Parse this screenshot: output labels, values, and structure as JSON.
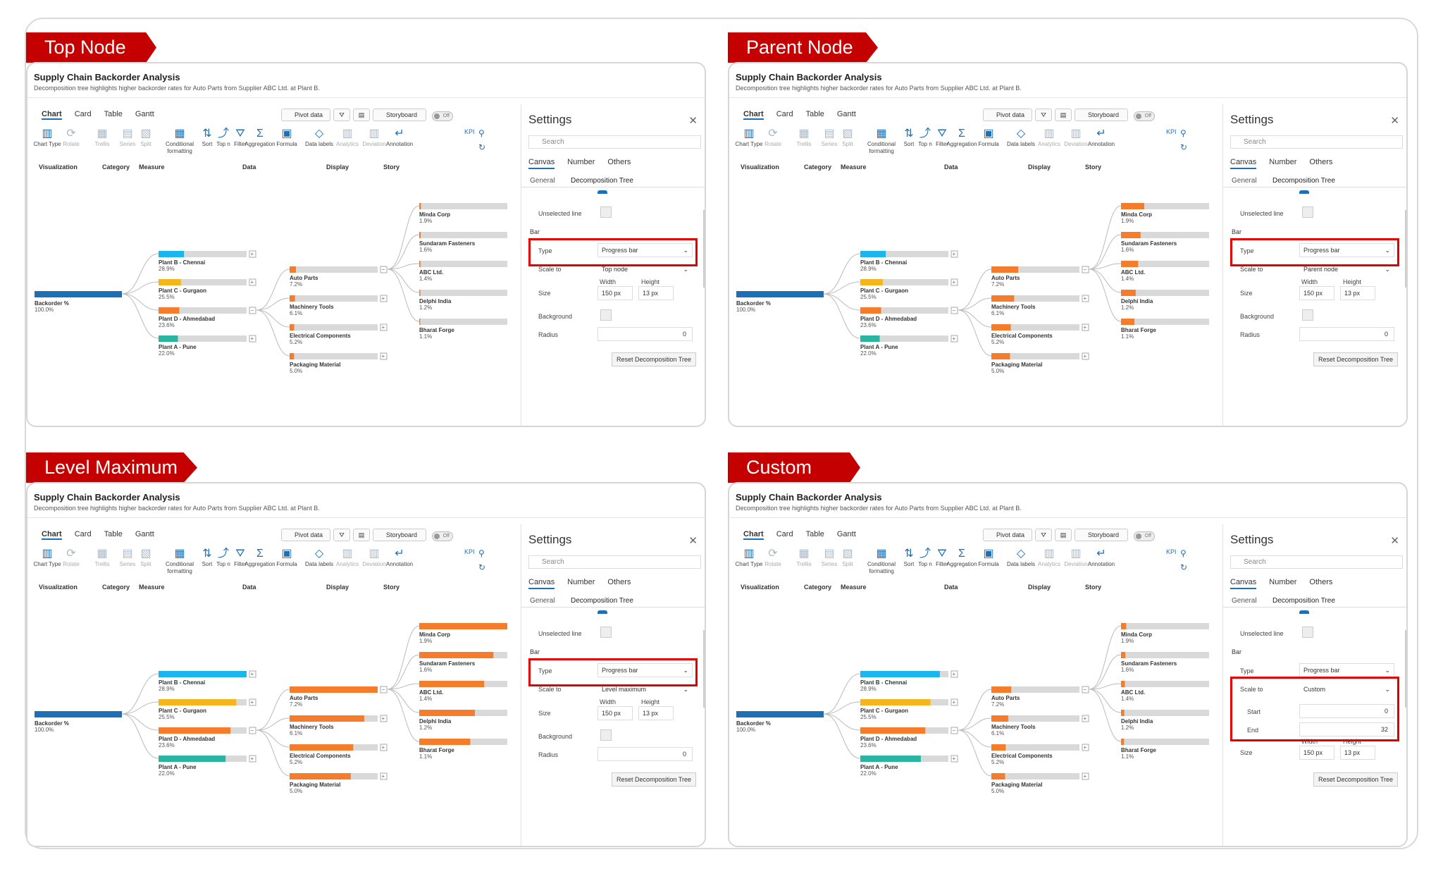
{
  "colors": {
    "accent": "#1f6fb5",
    "tag_red": "#c40000",
    "highlight": "#e00000",
    "bar_root": "#1f6fb5",
    "bar_chennai": "#1ab6f0",
    "bar_gurgaon": "#f5b51b",
    "bar_ahmedabad": "#f47c2a",
    "bar_pune": "#2ab5a3",
    "bar_orange": "#f47c2a",
    "bar_track": "#d9d9d9"
  },
  "common": {
    "title": "Supply Chain Backorder Analysis",
    "subtitle": "Decomposition tree highlights higher backorder rates for Auto Parts from Supplier ABC Ltd. at Plant B.",
    "tabs": [
      "Chart",
      "Card",
      "Table",
      "Gantt"
    ],
    "pivot_label": "Pivot data",
    "storyboard_label": "Storyboard",
    "toggle_label": "Off",
    "tools": [
      {
        "label": "Chart Type",
        "icon": "chart-type-icon",
        "glyph": "▥",
        "dim": false
      },
      {
        "label": "Rotate",
        "icon": "rotate-icon",
        "glyph": "⟳",
        "dim": true
      },
      {
        "label": "Trellis",
        "icon": "trellis-icon",
        "glyph": "▦",
        "dim": true
      },
      {
        "label": "Series",
        "icon": "series-icon",
        "glyph": "▤",
        "dim": true
      },
      {
        "label": "Split",
        "icon": "split-icon",
        "glyph": "▧",
        "dim": true
      },
      {
        "label": "Conditional formatting",
        "icon": "conditional-formatting-icon",
        "glyph": "▦",
        "dim": false
      },
      {
        "label": "Sort",
        "icon": "sort-icon",
        "glyph": "⇅",
        "dim": false
      },
      {
        "label": "Top n",
        "icon": "top-n-icon",
        "glyph": "⤴",
        "dim": false
      },
      {
        "label": "Filter",
        "icon": "filter-icon",
        "glyph": "⛛",
        "dim": false
      },
      {
        "label": "Aggregation",
        "icon": "aggregation-icon",
        "glyph": "Σ",
        "dim": false
      },
      {
        "label": "Formula",
        "icon": "formula-icon",
        "glyph": "▣",
        "dim": false
      },
      {
        "label": "Data labels",
        "icon": "data-labels-icon",
        "glyph": "◇",
        "dim": false
      },
      {
        "label": "Analytics",
        "icon": "analytics-icon",
        "glyph": "▥",
        "dim": true
      },
      {
        "label": "Deviation",
        "icon": "deviation-icon",
        "glyph": "▥",
        "dim": true
      },
      {
        "label": "Annotation",
        "icon": "annotation-icon",
        "glyph": "↵",
        "dim": false
      }
    ],
    "groups": [
      "Visualization",
      "Category",
      "Measure",
      "Data",
      "Display",
      "Story"
    ],
    "kpi_label": "KPI",
    "tree": {
      "root": {
        "name": "Backorder %",
        "value": "100.0%"
      },
      "plants": [
        {
          "name": "Plant B - Chennai",
          "value": "28.9%",
          "pct": 28.9,
          "color": "#1ab6f0"
        },
        {
          "name": "Plant C - Gurgaon",
          "value": "25.5%",
          "pct": 25.5,
          "color": "#f5b51b"
        },
        {
          "name": "Plant D - Ahmedabad",
          "value": "23.6%",
          "pct": 23.6,
          "color": "#f47c2a"
        },
        {
          "name": "Plant A - Pune",
          "value": "22.0%",
          "pct": 22.0,
          "color": "#2ab5a3"
        }
      ],
      "categories": [
        {
          "name": "Auto Parts",
          "value": "7.2%",
          "pct": 7.2
        },
        {
          "name": "Machinery Tools",
          "value": "6.1%",
          "pct": 6.1
        },
        {
          "name": "Electrical Components",
          "value": "5.2%",
          "pct": 5.2
        },
        {
          "name": "Packaging Material",
          "value": "5.0%",
          "pct": 5.0
        }
      ],
      "suppliers": [
        {
          "name": "Minda Corp",
          "value": "1.9%",
          "pct": 1.9
        },
        {
          "name": "Sundaram Fasteners",
          "value": "1.6%",
          "pct": 1.6
        },
        {
          "name": "ABC Ltd.",
          "value": "1.4%",
          "pct": 1.4
        },
        {
          "name": "Delphi India",
          "value": "1.2%",
          "pct": 1.2
        },
        {
          "name": "Bharat Forge",
          "value": "1.1%",
          "pct": 1.1
        }
      ]
    },
    "settings": {
      "title": "Settings",
      "search_placeholder": "Search",
      "tabs": [
        "Canvas",
        "Number",
        "Others"
      ],
      "subtabs": [
        "General",
        "Decomposition Tree"
      ],
      "unselected_line": "Unselected line",
      "bar_section": "Bar",
      "type_label": "Type",
      "type_value": "Progress bar",
      "scale_label": "Scale to",
      "size_label": "Size",
      "width_label": "Width",
      "height_label": "Height",
      "width_value": "150 px",
      "height_value": "13 px",
      "background_label": "Background",
      "radius_label": "Radius",
      "radius_value": "0",
      "reset_label": "Reset Decomposition Tree",
      "start_label": "Start",
      "end_label": "End"
    }
  },
  "panels": [
    {
      "tag": "Top Node",
      "scale_value": "Top node",
      "mode": "top"
    },
    {
      "tag": "Parent Node",
      "scale_value": "Parent node",
      "mode": "parent"
    },
    {
      "tag": "Level Maximum",
      "scale_value": "Level maximum",
      "mode": "level"
    },
    {
      "tag": "Custom",
      "scale_value": "Custom",
      "mode": "custom",
      "start_value": "0",
      "end_value": "32",
      "scale_max": 32
    }
  ]
}
